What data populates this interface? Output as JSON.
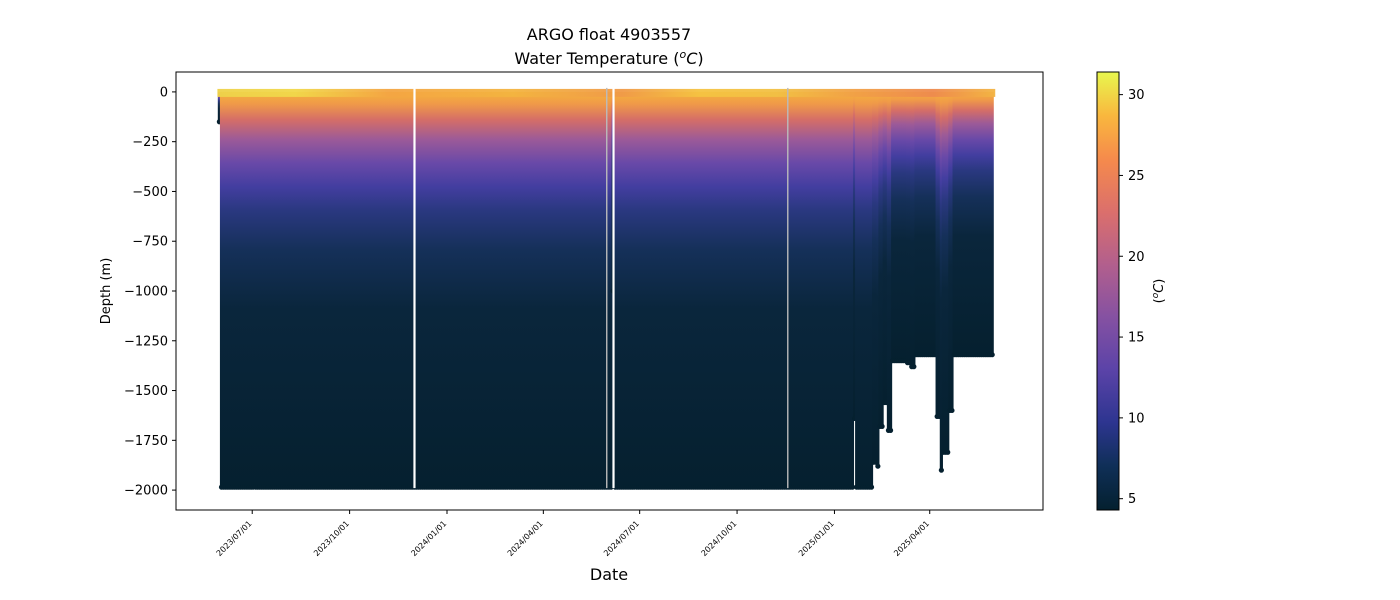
{
  "chart_data": {
    "type": "heatmap",
    "title": "ARGO float 4903557",
    "subtitle": "Water Temperature (ᴼC)",
    "subtitle_parts": {
      "pre": "Water Temperature (",
      "sup": "o",
      "unit": "C",
      "post": ")"
    },
    "xlabel": "Date",
    "ylabel": "Depth (m)",
    "ylim": [
      -2100,
      100
    ],
    "yticks": [
      0,
      -250,
      -500,
      -750,
      -1000,
      -1250,
      -1500,
      -1750,
      -2000
    ],
    "ytick_labels": [
      "0",
      "−250",
      "−500",
      "−750",
      "−1000",
      "−1250",
      "−1500",
      "−1750",
      "−2000"
    ],
    "xlim": [
      "2023-04-20",
      "2025-07-17"
    ],
    "xticks": [
      "2023-07-01",
      "2023-10-01",
      "2024-01-01",
      "2024-04-01",
      "2024-07-01",
      "2024-10-01",
      "2025-01-01",
      "2025-04-01"
    ],
    "xtick_labels": [
      "2023/07/01",
      "2023/10/01",
      "2024/01/01",
      "2024/04/01",
      "2024/07/01",
      "2024/10/01",
      "2025/01/01",
      "2025/04/01"
    ],
    "first_profile_date": "2023-05-31",
    "last_profile_date": "2025-05-31",
    "gaps": [
      {
        "date": "2023-12-01",
        "color": "#ffffff"
      },
      {
        "date": "2024-05-31",
        "color": "#bbbbbb"
      },
      {
        "date": "2024-06-06",
        "color": "#ffffff"
      },
      {
        "date": "2024-11-18",
        "color": "#bbbbbb"
      }
    ],
    "colorbar": {
      "label": "(ᴼC)",
      "label_parts": {
        "pre": "(",
        "sup": "o",
        "unit": "C",
        "post": ")"
      },
      "range": [
        4.3,
        31.4
      ],
      "ticks": [
        5,
        10,
        15,
        20,
        25,
        30
      ],
      "colormap": "thermal"
    },
    "max_depth_profile": [
      {
        "date": "2023-05-31",
        "depth": -150
      },
      {
        "date": "2023-06-02",
        "depth": -1985
      },
      {
        "date": "2024-06-05",
        "depth": -1000
      },
      {
        "date": "2024-06-07",
        "depth": -1985
      },
      {
        "date": "2025-01-17",
        "depth": -1985
      },
      {
        "date": "2025-01-19",
        "depth": -1640
      },
      {
        "date": "2025-01-22",
        "depth": -1985
      },
      {
        "date": "2025-02-05",
        "depth": -1985
      },
      {
        "date": "2025-02-07",
        "depth": -1860
      },
      {
        "date": "2025-02-10",
        "depth": -1880
      },
      {
        "date": "2025-02-13",
        "depth": -1680
      },
      {
        "date": "2025-02-17",
        "depth": -1560
      },
      {
        "date": "2025-02-21",
        "depth": -1700
      },
      {
        "date": "2025-02-24",
        "depth": -1350
      },
      {
        "date": "2025-03-10",
        "depth": -1360
      },
      {
        "date": "2025-03-14",
        "depth": -1380
      },
      {
        "date": "2025-03-19",
        "depth": -1320
      },
      {
        "date": "2025-04-08",
        "depth": -1630
      },
      {
        "date": "2025-04-11",
        "depth": -1900
      },
      {
        "date": "2025-04-14",
        "depth": -1810
      },
      {
        "date": "2025-04-19",
        "depth": -1600
      },
      {
        "date": "2025-04-23",
        "depth": -1320
      },
      {
        "date": "2025-05-31",
        "depth": -1230
      }
    ]
  }
}
